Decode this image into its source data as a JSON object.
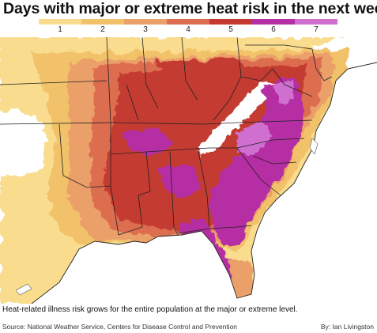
{
  "title": "Days with major or extreme heat risk in the next week",
  "legend": {
    "items": [
      {
        "label": "1",
        "color": "#f9dc8e"
      },
      {
        "label": "2",
        "color": "#f2c26a"
      },
      {
        "label": "3",
        "color": "#eba06a"
      },
      {
        "label": "4",
        "color": "#dd6d50"
      },
      {
        "label": "5",
        "color": "#c43a30"
      },
      {
        "label": "6",
        "color": "#b52fa4"
      },
      {
        "label": "7",
        "color": "#cf6fd0"
      }
    ]
  },
  "map": {
    "region": "Southeastern and central United States",
    "colors": {
      "none": "#ffffff",
      "water": "#ffffff",
      "boundary": "#222222"
    }
  },
  "caption": "Heat-related illness risk grows for the entire population at the major or extreme level.",
  "source": "Source: National Weather Service, Centers for Disease Control and Prevention",
  "credit": "By: Ian Livingston"
}
